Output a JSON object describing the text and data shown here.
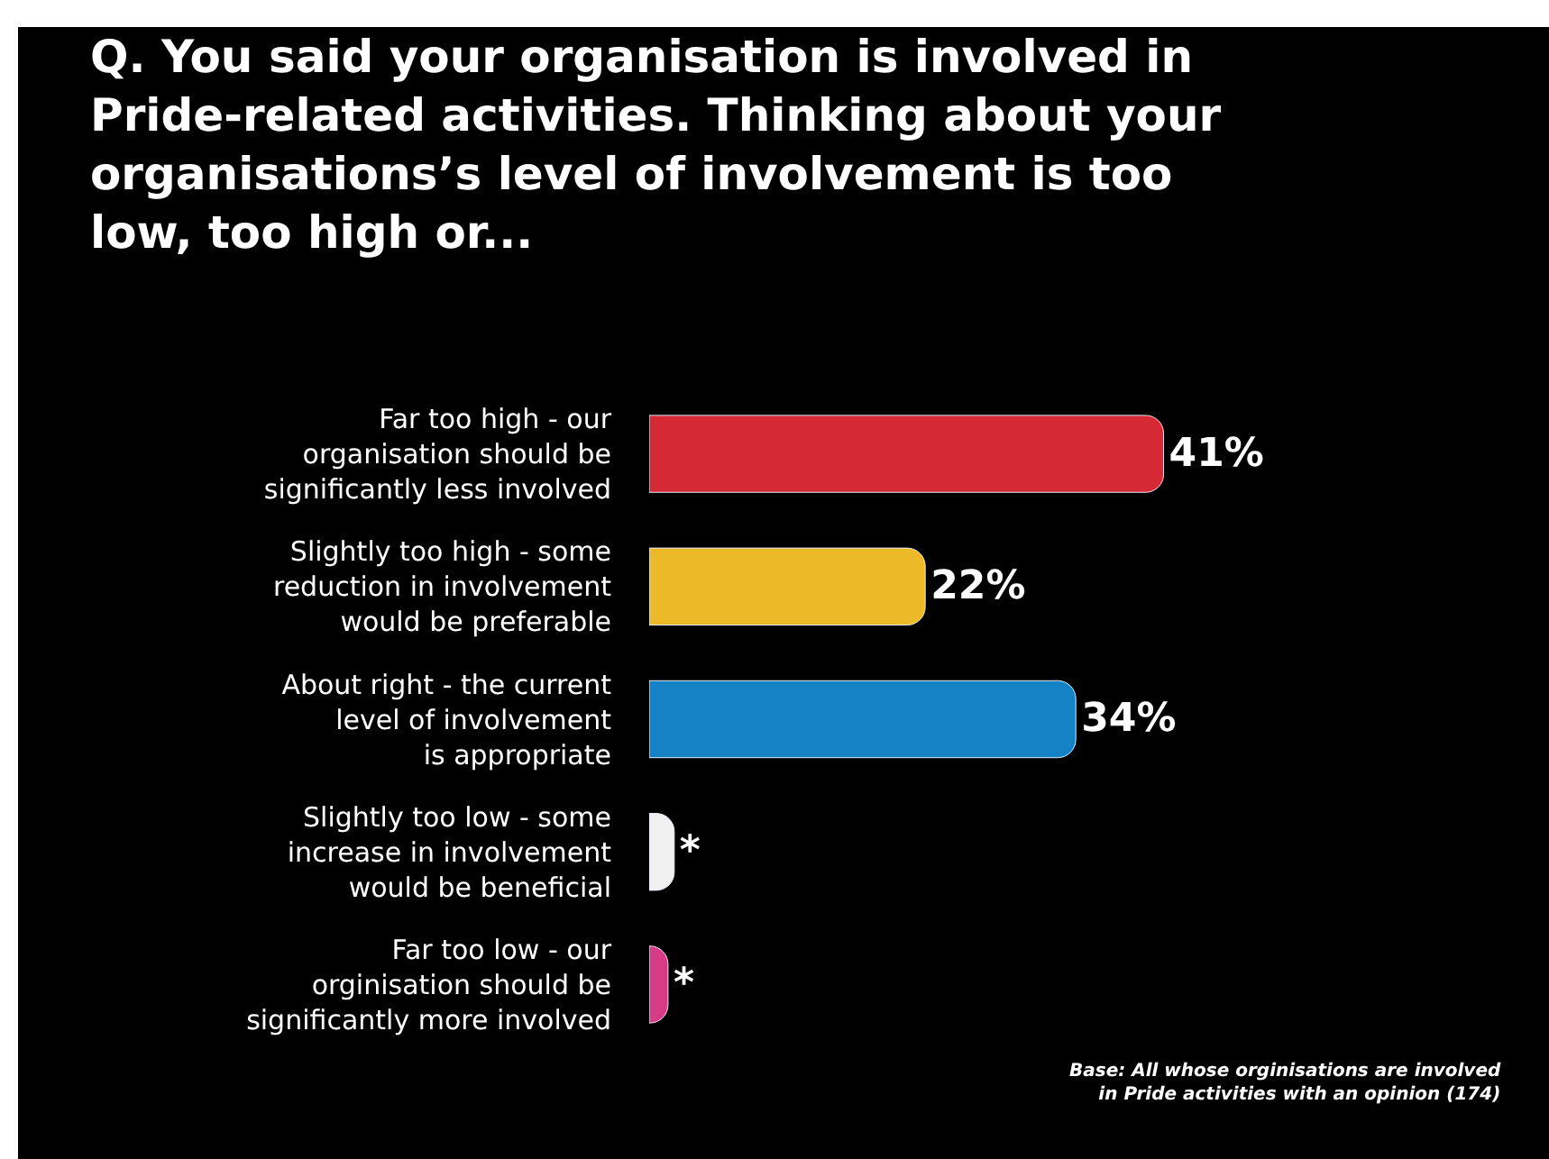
{
  "chart_data": {
    "type": "bar",
    "orientation": "horizontal",
    "title": "Q. You said your organisation is involved in\nPride-related activities. Thinking about your\norganisations’s level of involvement is too\nlow, too high or...",
    "categories": [
      "Far too high - our\norganisation should be\nsignificantly less involved",
      "Slightly too high - some\nreduction in involvement\nwould be preferable",
      "About right - the current\nlevel of involvement\nis appropriate",
      "Slightly too low - some\nincrease in involvement\nwould be beneficial",
      "Far too low - our\norginisation should be\nsignificantly more involved"
    ],
    "values": [
      41,
      22,
      34,
      2,
      1.5
    ],
    "value_labels": [
      "41%",
      "22%",
      "34%",
      "*",
      "*"
    ],
    "colors": [
      "#d62936",
      "#ecb928",
      "#1582c6",
      "#f0f0f0",
      "#d63c86"
    ],
    "tick_labels": "y",
    "legend": false,
    "annotations": [
      "Base: All whose orginisations are involved\nin Pride activities with an opinion (174)"
    ]
  }
}
